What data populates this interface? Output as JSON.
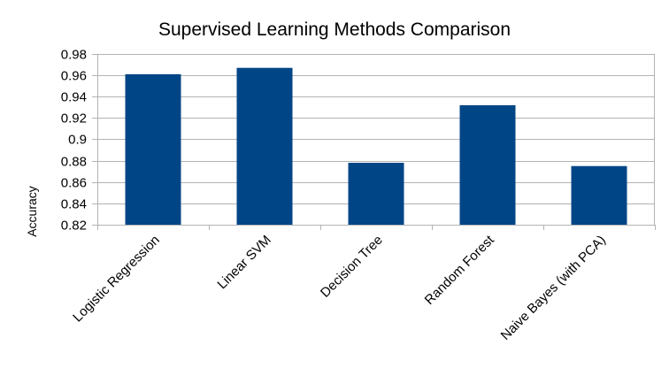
{
  "chart_data": {
    "type": "bar",
    "title": "Supervised Learning Methods Comparison",
    "xlabel": "",
    "ylabel": "Accuracy",
    "categories": [
      "Logistic Regression",
      "Linear SVM",
      "Decision Tree",
      "Random Forest",
      "Naive Bayes (with PCA)"
    ],
    "values": [
      0.961,
      0.967,
      0.878,
      0.932,
      0.875
    ],
    "ylim": [
      0.82,
      0.98
    ],
    "yticks": [
      "0.82",
      "0.84",
      "0.86",
      "0.88",
      "0.9",
      "0.92",
      "0.94",
      "0.96",
      "0.98"
    ],
    "grid": true,
    "legend": "none",
    "bar_color": "#004586",
    "grid_color": "#b3b3b3"
  }
}
